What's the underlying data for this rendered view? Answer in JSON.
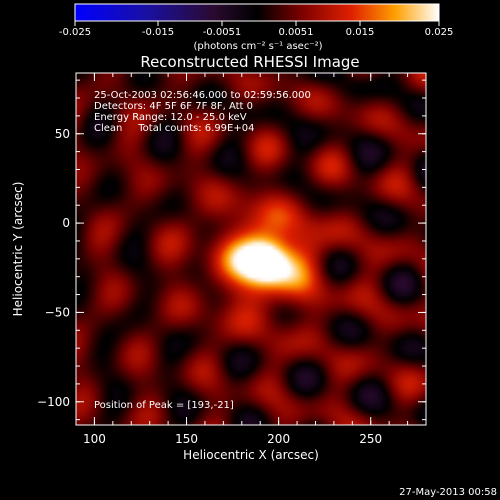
{
  "chart_data": {
    "type": "heatmap",
    "title": "Reconstructed RHESSI Image",
    "xlabel": "Heliocentric X (arcsec)",
    "ylabel": "Heliocentric Y (arcsec)",
    "xlim": [
      90,
      280
    ],
    "ylim": [
      -113,
      84
    ],
    "x_ticks": [
      100,
      150,
      200,
      250
    ],
    "y_ticks": [
      50,
      0,
      -50,
      -100
    ],
    "grid": false,
    "colorbar": {
      "position": "top",
      "colormap": "blue-black-red-yellow-white",
      "range": [
        -0.025,
        0.025
      ],
      "tick_labels": [
        "-0.025",
        "-0.015",
        "-0.0051",
        "0.0051",
        "0.015",
        "0.025"
      ],
      "units_label": "(photons cm⁻² s⁻¹ asec⁻²)"
    },
    "annotations": [
      "25-Oct-2003 02:56:46.000 to 02:59:56.000",
      "Detectors: 4F 5F 6F 7F 8F, Att 0",
      "Energy Range: 12.0 - 25.0 keV",
      "Clean     Total counts: 6.99E+04"
    ],
    "peak": {
      "x": 193,
      "y": -21,
      "label": "Position of Peak = [193,-21]"
    },
    "timestamp": "27-May-2013 00:58"
  }
}
